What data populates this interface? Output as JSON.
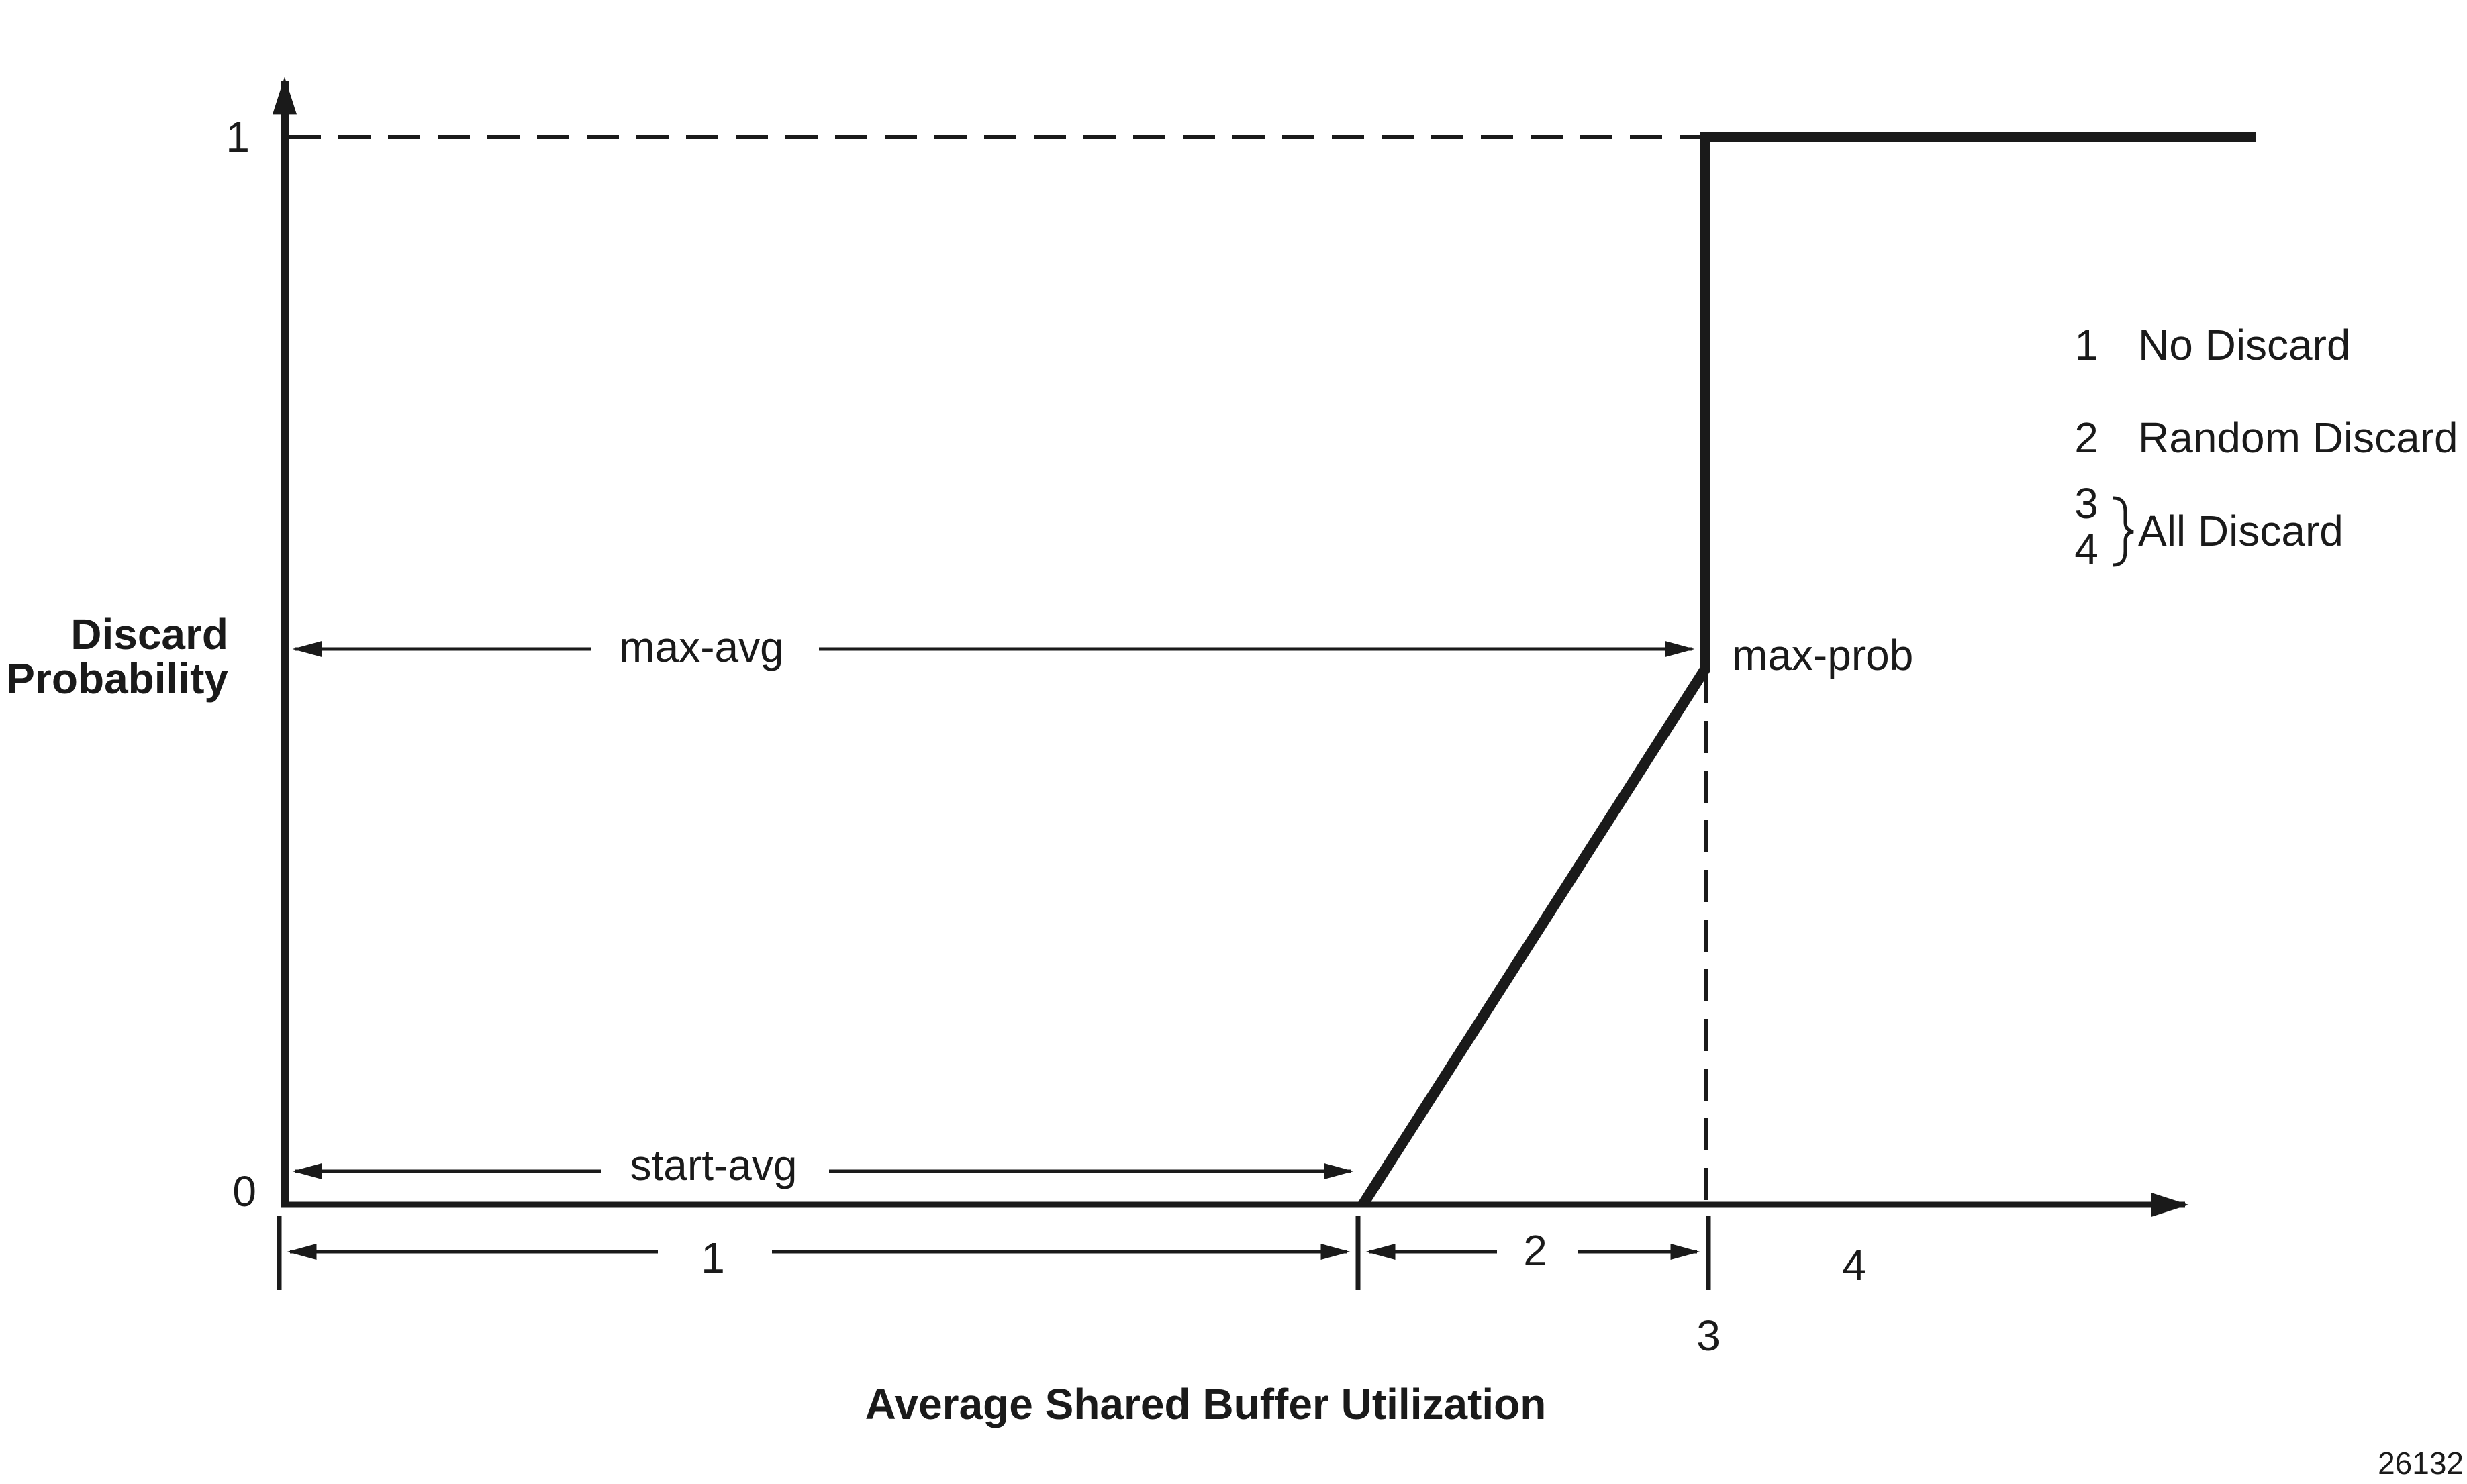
{
  "y_axis": {
    "title_line1": "Discard",
    "title_line2": "Probability",
    "tick_top": "1",
    "tick_bottom": "0"
  },
  "x_axis": {
    "title": "Average Shared Buffer Utilization"
  },
  "annotations": {
    "max_avg": "max-avg",
    "start_avg": "start-avg",
    "max_prob": "max-prob"
  },
  "regions": {
    "r1": "1",
    "r2": "2",
    "r3": "3",
    "r4": "4"
  },
  "legend": {
    "items": [
      {
        "num": "1",
        "label": "No Discard"
      },
      {
        "num": "2",
        "label": "Random Discard"
      },
      {
        "num_a": "3",
        "num_b": "4",
        "label": "All Discard"
      }
    ]
  },
  "figure_id": "26132"
}
